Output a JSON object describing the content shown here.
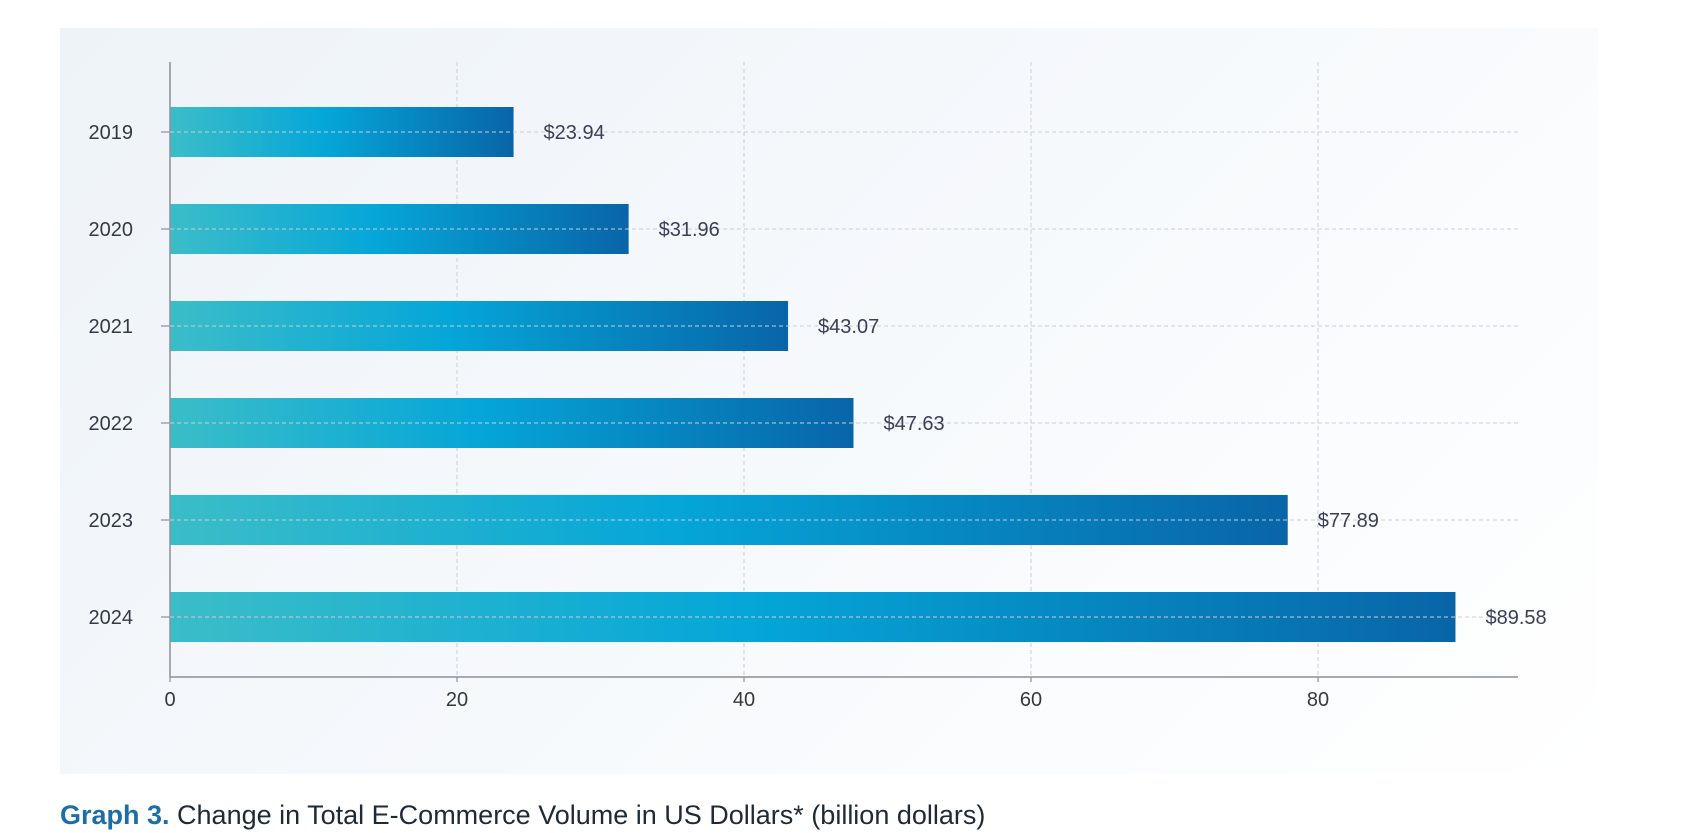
{
  "chart_data": {
    "type": "bar",
    "orientation": "horizontal",
    "categories": [
      "2019",
      "2020",
      "2021",
      "2022",
      "2023",
      "2024"
    ],
    "values": [
      23.94,
      31.96,
      43.07,
      47.63,
      77.89,
      89.58
    ],
    "value_labels": [
      "$23.94",
      "$31.96",
      "$43.07",
      "$47.63",
      "$77.89",
      "$89.58"
    ],
    "x_ticks": [
      0,
      20,
      40,
      60,
      80
    ],
    "xlim": [
      0,
      94
    ],
    "grid": true,
    "title": "Change in Total E-Commerce Volume in US Dollars* (billion dollars)",
    "xlabel": "",
    "ylabel": ""
  },
  "caption": {
    "prefix": "Graph 3.",
    "text": " Change in Total E-Commerce Volume in US Dollars* (billion dollars)"
  },
  "colors": {
    "bar_gradient_start": "#3bbdc8",
    "bar_gradient_mid": "#05a6d8",
    "bar_gradient_end": "#0865a8",
    "grid": "#c9cfd6",
    "axis": "#8a9099",
    "caption_prefix": "#1b6fa8"
  }
}
